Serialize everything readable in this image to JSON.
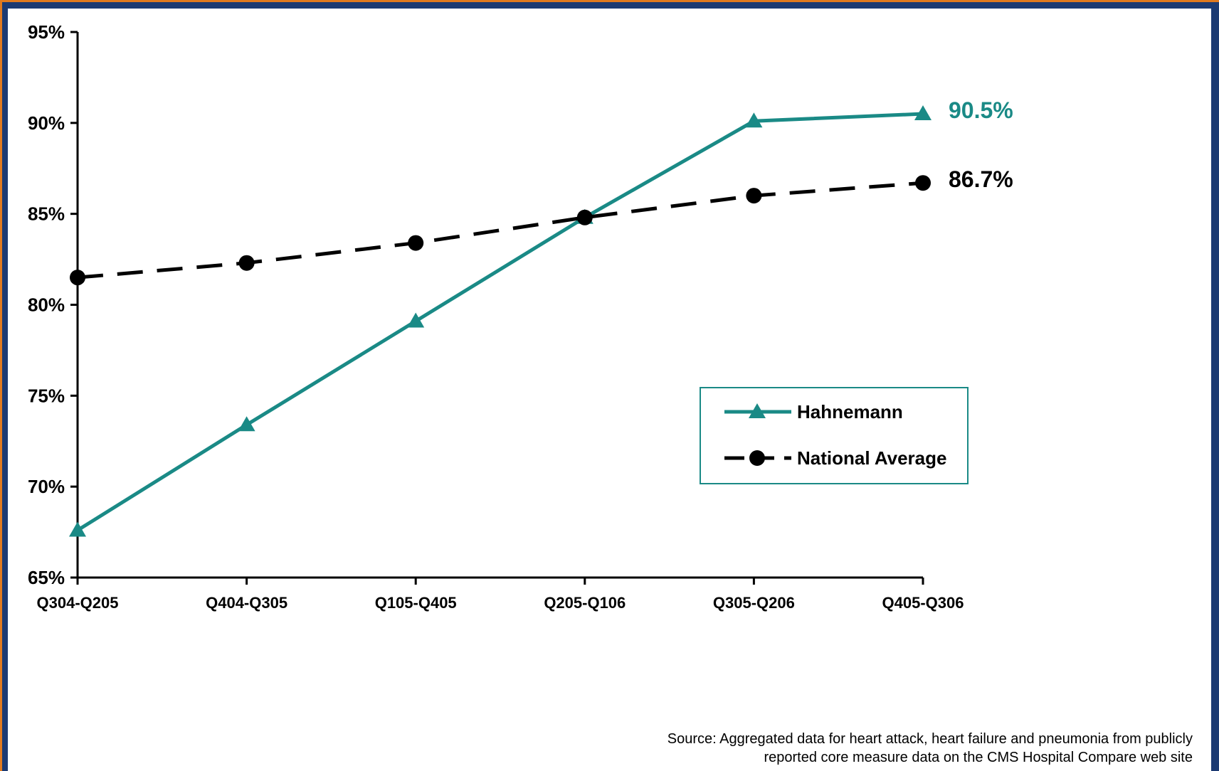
{
  "chart_data": {
    "type": "line",
    "categories": [
      "Q304-Q205",
      "Q404-Q305",
      "Q105-Q405",
      "Q205-Q106",
      "Q305-Q206",
      "Q405-Q306"
    ],
    "series": [
      {
        "name": "Hahnemann",
        "values": [
          67.6,
          73.4,
          79.1,
          84.8,
          90.1,
          90.5
        ],
        "color": "#1a8a86",
        "marker": "triangle",
        "line_style": "solid",
        "end_label": "90.5%"
      },
      {
        "name": "National Average",
        "values": [
          81.5,
          82.3,
          83.4,
          84.8,
          86.0,
          86.7
        ],
        "color": "#000000",
        "marker": "circle",
        "line_style": "dashed",
        "end_label": "86.7%"
      }
    ],
    "y_ticks": [
      "65%",
      "70%",
      "75%",
      "80%",
      "85%",
      "90%",
      "95%"
    ],
    "ylim": [
      65,
      95
    ],
    "y_unit": "%",
    "grid": false,
    "legend_position": "right",
    "title": "",
    "xlabel": "",
    "ylabel": ""
  },
  "source_note": {
    "line1": "Source:  Aggregated data for heart attack, heart failure and pneumonia from publicly",
    "line2": "reported core measure data on the CMS Hospital Compare web site"
  },
  "colors": {
    "frame_background": "#1c3a72",
    "frame_accent": "#e07a1f",
    "panel_background": "#ffffff",
    "legend_border": "#1a8a86"
  }
}
